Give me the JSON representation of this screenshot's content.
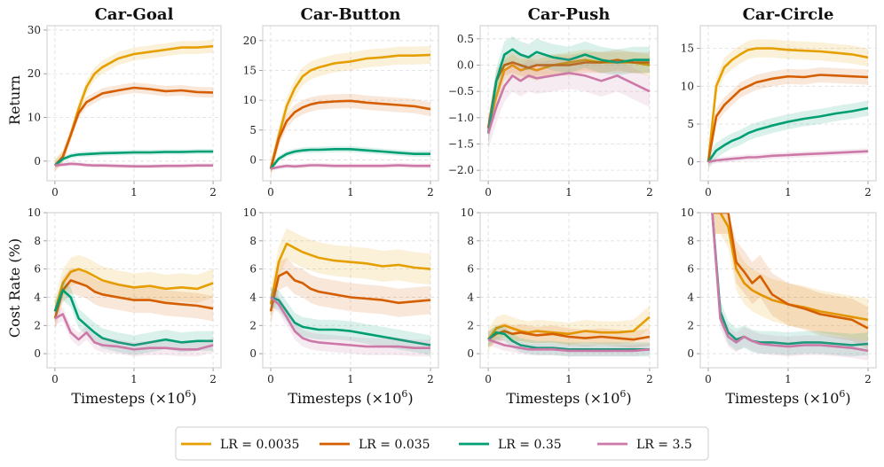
{
  "chart_data": {
    "type": "line",
    "xlabel": "Timesteps (×10",
    "xlabel_sup": "6",
    "xlabel_close": ")",
    "legend": {
      "location": "bottom-center",
      "entries": [
        {
          "label": "LR = 0.0035",
          "color": "#E69F00"
        },
        {
          "label": "LR = 0.035",
          "color": "#D55E00"
        },
        {
          "label": "LR = 0.35",
          "color": "#009E73"
        },
        {
          "label": "LR = 3.5",
          "color": "#CC79A7"
        }
      ]
    },
    "row_ylabels": [
      "Return",
      "Cost Rate (%)"
    ],
    "x_ticks": [
      0,
      1,
      2
    ],
    "panels": [
      {
        "id": "car-goal-return",
        "row": 0,
        "col": 0,
        "title": "Car-Goal",
        "xlim": [
          -0.1,
          2.1
        ],
        "ylim": [
          -4.5,
          31
        ],
        "yticks": [
          0,
          10,
          20,
          30
        ],
        "x": [
          0,
          0.1,
          0.2,
          0.3,
          0.4,
          0.5,
          0.6,
          0.8,
          1.0,
          1.2,
          1.4,
          1.6,
          1.8,
          2.0
        ],
        "series": [
          {
            "values": [
              -1,
              1,
              6,
              12,
              17,
              20,
              21.5,
              23.5,
              24.5,
              25,
              25.5,
              26,
              26,
              26.3
            ],
            "band": 1.5
          },
          {
            "values": [
              -1,
              1,
              6,
              11,
              13.5,
              14.5,
              15.5,
              16.2,
              16.8,
              16.5,
              16,
              16.2,
              15.8,
              15.7
            ],
            "band": 1.2
          },
          {
            "values": [
              -1,
              0.5,
              1.2,
              1.5,
              1.6,
              1.7,
              1.8,
              1.9,
              2,
              2,
              2.1,
              2.1,
              2.2,
              2.2
            ],
            "band": 0.6
          },
          {
            "values": [
              -1,
              -0.8,
              -0.6,
              -0.7,
              -0.9,
              -1,
              -1,
              -1.1,
              -1.2,
              -1.2,
              -1.1,
              -1.1,
              -1,
              -1
            ],
            "band": 0.5
          }
        ]
      },
      {
        "id": "car-button-return",
        "row": 0,
        "col": 1,
        "title": "Car-Button",
        "xlim": [
          -0.1,
          2.1
        ],
        "ylim": [
          -3.5,
          22.5
        ],
        "yticks": [
          0,
          5,
          10,
          15,
          20
        ],
        "x": [
          0,
          0.1,
          0.2,
          0.3,
          0.4,
          0.5,
          0.6,
          0.8,
          1.0,
          1.2,
          1.4,
          1.6,
          1.8,
          2.0
        ],
        "series": [
          {
            "values": [
              -1.5,
              4,
              9,
              12,
              14,
              15,
              15.5,
              16.2,
              16.5,
              17,
              17.2,
              17.5,
              17.5,
              17.6
            ],
            "band": 1.5
          },
          {
            "values": [
              -1.5,
              3.5,
              6.5,
              8,
              8.8,
              9.3,
              9.6,
              9.8,
              9.9,
              9.6,
              9.4,
              9.2,
              9,
              8.5
            ],
            "band": 1.2
          },
          {
            "values": [
              -1.5,
              0.2,
              1.0,
              1.4,
              1.6,
              1.7,
              1.7,
              1.8,
              1.8,
              1.6,
              1.4,
              1.2,
              1.0,
              1.0
            ],
            "band": 0.5
          },
          {
            "values": [
              -1.5,
              -1.2,
              -1.0,
              -1.1,
              -1.0,
              -0.9,
              -0.9,
              -1.0,
              -1.0,
              -1.0,
              -1.0,
              -0.9,
              -1.0,
              -1.0
            ],
            "band": 0.4
          }
        ]
      },
      {
        "id": "car-push-return",
        "row": 0,
        "col": 2,
        "title": "Car-Push",
        "xlim": [
          -0.1,
          2.1
        ],
        "ylim": [
          -2.2,
          0.75
        ],
        "yticks": [
          -2.0,
          -1.5,
          -1.0,
          -0.5,
          0.0,
          0.5
        ],
        "ytick_labels": [
          "−2.0",
          "−1.5",
          "−1.0",
          "−0.5",
          "0.0",
          "0.5"
        ],
        "x": [
          0,
          0.1,
          0.2,
          0.3,
          0.4,
          0.5,
          0.6,
          0.8,
          1.0,
          1.2,
          1.4,
          1.6,
          1.8,
          2.0
        ],
        "series": [
          {
            "values": [
              -1.2,
              -0.6,
              -0.1,
              0.0,
              -0.1,
              -0.05,
              -0.1,
              0.0,
              0.05,
              0.1,
              0.05,
              0.05,
              0.05,
              0.0
            ],
            "band": 0.2
          },
          {
            "values": [
              -1.2,
              -0.3,
              0.0,
              0.05,
              0.0,
              -0.05,
              0.0,
              0.0,
              0.0,
              0.05,
              0.05,
              0.1,
              0.05,
              0.05
            ],
            "band": 0.2
          },
          {
            "values": [
              -1.3,
              -0.3,
              0.2,
              0.3,
              0.2,
              0.15,
              0.25,
              0.15,
              0.1,
              0.2,
              0.1,
              0.05,
              0.1,
              0.1
            ],
            "band": 0.25
          },
          {
            "values": [
              -1.3,
              -0.8,
              -0.4,
              -0.2,
              -0.3,
              -0.2,
              -0.25,
              -0.2,
              -0.15,
              -0.2,
              -0.3,
              -0.2,
              -0.35,
              -0.5
            ],
            "band": 0.3
          }
        ]
      },
      {
        "id": "car-circle-return",
        "row": 0,
        "col": 3,
        "title": "Car-Circle",
        "xlim": [
          -0.1,
          2.1
        ],
        "ylim": [
          -2.5,
          18
        ],
        "yticks": [
          0,
          5,
          10,
          15
        ],
        "x": [
          0,
          0.1,
          0.2,
          0.3,
          0.4,
          0.5,
          0.6,
          0.8,
          1.0,
          1.2,
          1.4,
          1.6,
          1.8,
          2.0
        ],
        "series": [
          {
            "values": [
              0,
              10,
              12.5,
              13.5,
              14.2,
              14.8,
              15,
              15,
              14.8,
              14.7,
              14.6,
              14.4,
              14.2,
              13.8
            ],
            "band": 1.2
          },
          {
            "values": [
              0,
              6,
              7.5,
              8.5,
              9.5,
              10,
              10.5,
              11,
              11.3,
              11.2,
              11.5,
              11.4,
              11.3,
              11.2
            ],
            "band": 1.0
          },
          {
            "values": [
              0,
              1.5,
              2.2,
              2.8,
              3.2,
              3.8,
              4.2,
              4.8,
              5.3,
              5.7,
              6.0,
              6.4,
              6.7,
              7.1
            ],
            "band": 1.0
          },
          {
            "values": [
              0,
              0.2,
              0.3,
              0.4,
              0.5,
              0.6,
              0.6,
              0.8,
              0.9,
              1.0,
              1.1,
              1.2,
              1.3,
              1.4
            ],
            "band": 0.4
          }
        ]
      },
      {
        "id": "car-goal-cost",
        "row": 1,
        "col": 0,
        "title": "",
        "xlim": [
          -0.1,
          2.1
        ],
        "ylim": [
          -1,
          10
        ],
        "yticks": [
          0,
          2,
          4,
          6,
          8,
          10
        ],
        "x": [
          0,
          0.1,
          0.2,
          0.3,
          0.4,
          0.5,
          0.6,
          0.8,
          1.0,
          1.2,
          1.4,
          1.6,
          1.8,
          2.0
        ],
        "series": [
          {
            "values": [
              3,
              5,
              5.8,
              6,
              5.8,
              5.5,
              5.2,
              4.9,
              4.7,
              4.8,
              4.6,
              4.7,
              4.6,
              5.0
            ],
            "band": 1.0
          },
          {
            "values": [
              2.5,
              4.5,
              5.2,
              5,
              4.8,
              4.4,
              4.2,
              4.0,
              3.8,
              3.8,
              3.6,
              3.5,
              3.4,
              3.2
            ],
            "band": 0.9
          },
          {
            "values": [
              3,
              4.5,
              4,
              2.5,
              2,
              1.5,
              1.1,
              0.8,
              0.6,
              0.8,
              1.0,
              0.8,
              0.9,
              0.9
            ],
            "band": 0.7
          },
          {
            "values": [
              2.5,
              2.8,
              1.5,
              1.0,
              1.5,
              0.8,
              0.6,
              0.5,
              0.3,
              0.4,
              0.4,
              0.3,
              0.3,
              0.6
            ],
            "band": 0.5
          }
        ]
      },
      {
        "id": "car-button-cost",
        "row": 1,
        "col": 1,
        "title": "",
        "xlim": [
          -0.1,
          2.1
        ],
        "ylim": [
          -1,
          10
        ],
        "yticks": [
          0,
          2,
          4,
          6,
          8,
          10
        ],
        "x": [
          0,
          0.1,
          0.2,
          0.3,
          0.4,
          0.5,
          0.6,
          0.8,
          1.0,
          1.2,
          1.4,
          1.6,
          1.8,
          2.0
        ],
        "series": [
          {
            "values": [
              3.5,
              6.5,
              7.8,
              7.5,
              7.2,
              7.0,
              6.8,
              6.6,
              6.5,
              6.4,
              6.2,
              6.3,
              6.1,
              6.0
            ],
            "band": 1.1
          },
          {
            "values": [
              3,
              5.5,
              5.8,
              5.2,
              5.0,
              4.6,
              4.4,
              4.2,
              4.0,
              3.9,
              3.8,
              3.6,
              3.7,
              3.8
            ],
            "band": 1.0
          },
          {
            "values": [
              4,
              3.8,
              3.0,
              2.2,
              1.9,
              1.8,
              1.7,
              1.7,
              1.6,
              1.4,
              1.2,
              1.0,
              0.8,
              0.6
            ],
            "band": 0.7
          },
          {
            "values": [
              4,
              3.5,
              2.6,
              1.6,
              1.1,
              0.9,
              0.8,
              0.7,
              0.6,
              0.5,
              0.5,
              0.5,
              0.4,
              0.4
            ],
            "band": 0.6
          }
        ]
      },
      {
        "id": "car-push-cost",
        "row": 1,
        "col": 2,
        "title": "",
        "xlim": [
          -0.1,
          2.1
        ],
        "ylim": [
          -1,
          10
        ],
        "yticks": [
          0,
          2,
          4,
          6,
          8,
          10
        ],
        "x": [
          0,
          0.1,
          0.2,
          0.3,
          0.4,
          0.5,
          0.6,
          0.8,
          1.0,
          1.2,
          1.4,
          1.6,
          1.8,
          2.0
        ],
        "series": [
          {
            "values": [
              1,
              1.8,
              2.0,
              1.8,
              1.6,
              1.5,
              1.6,
              1.5,
              1.4,
              1.6,
              1.5,
              1.5,
              1.6,
              2.6
            ],
            "band": 0.8
          },
          {
            "values": [
              1,
              1.4,
              1.6,
              1.4,
              1.5,
              1.4,
              1.3,
              1.4,
              1.2,
              1.1,
              1.2,
              1.1,
              1.0,
              1.2
            ],
            "band": 0.6
          },
          {
            "values": [
              1,
              1.5,
              1.4,
              0.9,
              0.6,
              0.5,
              0.4,
              0.4,
              0.3,
              0.3,
              0.3,
              0.3,
              0.3,
              0.3
            ],
            "band": 0.5
          },
          {
            "values": [
              1,
              0.8,
              0.6,
              0.5,
              0.4,
              0.3,
              0.3,
              0.3,
              0.2,
              0.2,
              0.2,
              0.2,
              0.2,
              0.3
            ],
            "band": 0.4
          }
        ]
      },
      {
        "id": "car-circle-cost",
        "row": 1,
        "col": 3,
        "title": "",
        "xlim": [
          -0.1,
          2.1
        ],
        "ylim": [
          -1,
          10
        ],
        "yticks": [
          0,
          2,
          4,
          6,
          8,
          10
        ],
        "x": [
          0.05,
          0.15,
          0.25,
          0.35,
          0.45,
          0.55,
          0.65,
          0.8,
          1.0,
          1.2,
          1.4,
          1.6,
          1.8,
          2.0
        ],
        "series": [
          {
            "values": [
              10,
              10,
              9,
              6,
              5,
              4.5,
              4.2,
              3.8,
              3.5,
              3.3,
              3.0,
              2.8,
              2.6,
              2.4
            ],
            "band": 1.5
          },
          {
            "values": [
              10,
              10,
              10,
              6.5,
              5.8,
              5.0,
              5.5,
              4.2,
              3.5,
              3.2,
              2.8,
              2.6,
              2.4,
              1.8
            ],
            "band": 1.5
          },
          {
            "values": [
              10,
              3,
              1.5,
              1.0,
              1.2,
              0.9,
              0.8,
              0.8,
              0.7,
              0.8,
              0.8,
              0.7,
              0.6,
              0.7
            ],
            "band": 0.8
          },
          {
            "values": [
              10,
              2.5,
              1.2,
              0.8,
              1.2,
              0.9,
              0.7,
              0.6,
              0.5,
              0.6,
              0.6,
              0.5,
              0.4,
              0.2
            ],
            "band": 0.7
          }
        ]
      }
    ]
  }
}
